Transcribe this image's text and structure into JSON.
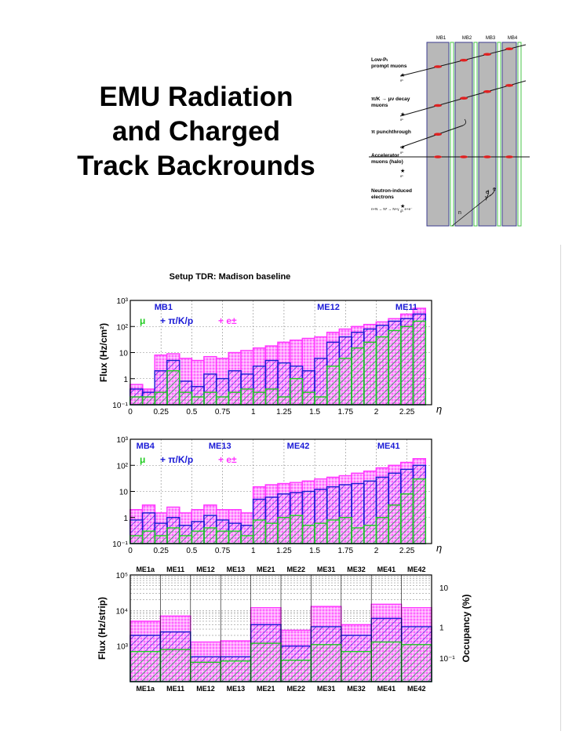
{
  "slide": {
    "title_lines": [
      "EMU Radiation",
      "and Charged",
      "Track Backrounds"
    ]
  },
  "colors": {
    "magenta": "#ff33ff",
    "blue": "#1a1ad6",
    "green": "#22cc22",
    "red": "#e02020",
    "gray": "#b8b8b8"
  },
  "diagram": {
    "stations": [
      "MB1",
      "MB2",
      "MB3",
      "MB4"
    ],
    "sources": [
      {
        "label": "Low-Pₜ\nprompt muons"
      },
      {
        "label": "π/K → μν decay\nmuons"
      },
      {
        "label": "π punchthrough"
      },
      {
        "label": "Accelerator\nmuons (halo)"
      },
      {
        "label": "Neutron-induced\nelectrons"
      }
    ],
    "neutron_reaction": "n+N → N* → N+γ → e+e⁻",
    "particle_labels": [
      "n",
      "γ",
      "e",
      "e"
    ],
    "ip_label": "IP"
  },
  "chart_data": [
    {
      "type": "bar",
      "title": "Setup TDR: Madison baseline",
      "ylabel": "Flux (Hz/cm²)",
      "xlabel": "η",
      "log_y": true,
      "ylim": [
        0.1,
        1000
      ],
      "xlim": [
        0,
        2.45
      ],
      "y_ticks": [
        "10⁻¹",
        "1",
        "10",
        "10²",
        "10³"
      ],
      "x_ticks": [
        "0",
        "0.25",
        "0.5",
        "0.75",
        "1",
        "1.25",
        "1.5",
        "1.75",
        "2",
        "2.25"
      ],
      "region_labels": [
        "MB1",
        "ME12",
        "ME11"
      ],
      "legend": [
        "μ",
        "+ π/K/p",
        "+ e±"
      ],
      "grid": true,
      "x": [
        0.05,
        0.15,
        0.25,
        0.35,
        0.45,
        0.55,
        0.65,
        0.75,
        0.85,
        0.95,
        1.05,
        1.15,
        1.25,
        1.35,
        1.45,
        1.55,
        1.65,
        1.75,
        1.85,
        1.95,
        2.05,
        2.15,
        2.25,
        2.35
      ],
      "series": [
        {
          "name": "μ",
          "values": [
            0.2,
            0.2,
            0.3,
            2,
            0.3,
            0.2,
            0.3,
            0.2,
            0.3,
            0.4,
            0.3,
            0.4,
            0.2,
            1,
            0.3,
            0.2,
            3,
            6,
            15,
            25,
            40,
            70,
            100,
            160
          ]
        },
        {
          "name": "+ π/K/p",
          "values": [
            0.4,
            0.3,
            2,
            5,
            0.8,
            0.5,
            1.5,
            1,
            2,
            1.5,
            3,
            5,
            4,
            3,
            2,
            6,
            25,
            40,
            60,
            80,
            110,
            160,
            200,
            300
          ]
        },
        {
          "name": "+ e±",
          "values": [
            0.6,
            0.4,
            8,
            9,
            6,
            5,
            7,
            6,
            10,
            12,
            15,
            18,
            25,
            30,
            35,
            40,
            60,
            80,
            100,
            120,
            150,
            200,
            300,
            500
          ]
        }
      ]
    },
    {
      "type": "bar",
      "ylabel": "",
      "xlabel": "η",
      "log_y": true,
      "ylim": [
        0.1,
        1000
      ],
      "xlim": [
        0,
        2.45
      ],
      "y_ticks": [
        "10⁻¹",
        "1",
        "10",
        "10²",
        "10³"
      ],
      "x_ticks": [
        "0",
        "0.25",
        "0.5",
        "0.75",
        "1",
        "1.25",
        "1.5",
        "1.75",
        "2",
        "2.25"
      ],
      "region_labels": [
        "MB4",
        "ME13",
        "ME42",
        "ME41"
      ],
      "legend": [
        "μ",
        "+ π/K/p",
        "+ e±"
      ],
      "grid": true,
      "x": [
        0.05,
        0.15,
        0.25,
        0.35,
        0.45,
        0.55,
        0.65,
        0.75,
        0.85,
        0.95,
        1.05,
        1.15,
        1.25,
        1.35,
        1.45,
        1.55,
        1.65,
        1.75,
        1.85,
        1.95,
        2.05,
        2.15,
        2.25,
        2.35
      ],
      "series": [
        {
          "name": "μ",
          "values": [
            0.2,
            0.3,
            0.2,
            0.4,
            0.2,
            0.3,
            0.4,
            0.3,
            0.3,
            0.2,
            0.8,
            0.6,
            1,
            1.2,
            0.5,
            0.6,
            0.8,
            1,
            0.4,
            0.5,
            1,
            3,
            8,
            30
          ]
        },
        {
          "name": "+ π/K/p",
          "values": [
            0.8,
            1.5,
            0.6,
            1,
            0.5,
            0.7,
            1.2,
            0.8,
            0.6,
            0.5,
            5,
            6,
            8,
            9,
            10,
            12,
            15,
            18,
            20,
            25,
            35,
            50,
            70,
            100
          ]
        },
        {
          "name": "+ e±",
          "values": [
            2,
            3,
            1.5,
            2.5,
            1.5,
            2,
            3,
            2,
            2,
            1.5,
            15,
            18,
            20,
            22,
            25,
            30,
            35,
            40,
            50,
            60,
            80,
            100,
            130,
            180
          ]
        }
      ]
    },
    {
      "type": "bar",
      "ylabel": "Flux (Hz/strip)",
      "y2label": "Occupancy (%)",
      "log_y": true,
      "ylim": [
        100,
        100000
      ],
      "y_ticks": [
        "10³",
        "10⁴",
        "10⁵"
      ],
      "y2_ticks": [
        "10⁻¹",
        "1",
        "10"
      ],
      "categories": [
        "ME1a",
        "ME11",
        "ME12",
        "ME13",
        "ME21",
        "ME22",
        "ME31",
        "ME32",
        "ME41",
        "ME42"
      ],
      "grid": true,
      "series": [
        {
          "name": "μ",
          "values": [
            700,
            800,
            350,
            380,
            1200,
            400,
            1100,
            700,
            1300,
            1100
          ]
        },
        {
          "name": "+ π/K/p",
          "values": [
            2000,
            2500,
            500,
            500,
            4000,
            1000,
            3500,
            2000,
            6000,
            3500
          ]
        },
        {
          "name": "+ e±",
          "values": [
            5000,
            7000,
            1300,
            1400,
            12000,
            2800,
            13000,
            4000,
            15000,
            12000
          ]
        }
      ]
    }
  ]
}
